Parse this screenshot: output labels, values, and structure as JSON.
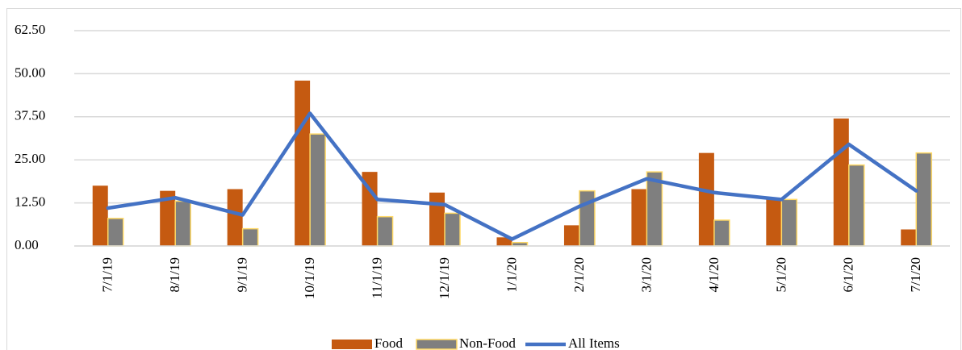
{
  "chart_data": {
    "type": "bar_line",
    "categories": [
      "7/1/19",
      "8/1/19",
      "9/1/19",
      "10/1/19",
      "11/1/19",
      "12/1/19",
      "1/1/20",
      "2/1/20",
      "3/1/20",
      "4/1/20",
      "5/1/20",
      "6/1/20",
      "7/1/20"
    ],
    "series": [
      {
        "name": "Food",
        "type": "bar",
        "color": "#c55a11",
        "values": [
          17.5,
          16,
          16.5,
          48,
          21.5,
          15.5,
          2.5,
          6,
          16.5,
          27,
          14,
          37,
          4.8
        ]
      },
      {
        "name": "Non-Food",
        "type": "bar",
        "color": "#7f7f7f",
        "edge_color": "#ffd966",
        "values": [
          8,
          13,
          5,
          32.5,
          8.5,
          9.5,
          1,
          16,
          21.5,
          7.5,
          13.5,
          23.5,
          27
        ]
      },
      {
        "name": "All Items",
        "type": "line",
        "color": "#4472c4",
        "values": [
          11,
          14,
          9,
          38.5,
          13.5,
          12,
          2,
          11.5,
          19.5,
          15.5,
          13.5,
          29.5,
          16
        ]
      }
    ],
    "ylim": [
      0,
      62.5
    ],
    "yticks": [
      {
        "value": 0,
        "label": "0.00"
      },
      {
        "value": 12.5,
        "label": "12.50"
      },
      {
        "value": 25,
        "label": "25.00"
      },
      {
        "value": 37.5,
        "label": "37.50"
      },
      {
        "value": 50,
        "label": "50.00"
      },
      {
        "value": 62.5,
        "label": "62.50"
      }
    ],
    "grid": true,
    "legend": "bottom"
  }
}
